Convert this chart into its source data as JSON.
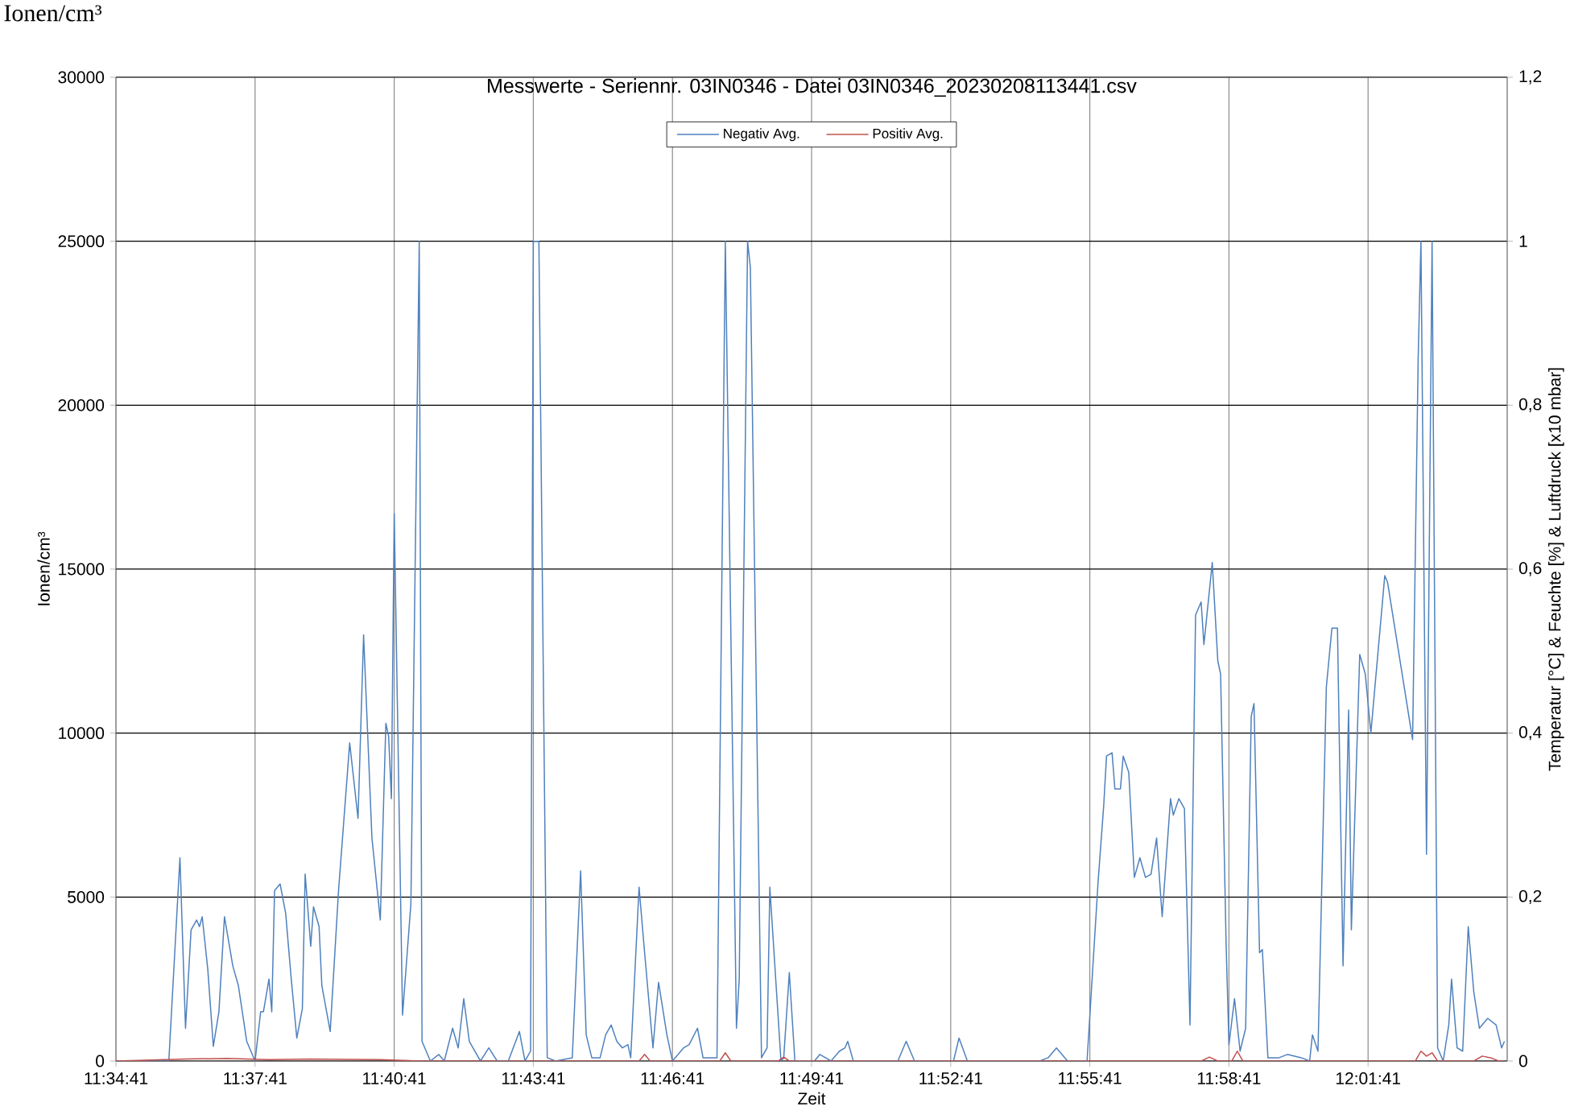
{
  "chart_data": {
    "type": "line",
    "title": "Messwerte - Seriennr. 03IN0346 - Datei 03IN0346_20230208113441.csv",
    "annotations": [
      "Ionen/cm³"
    ],
    "xlabel": "Zeit",
    "ylabel": "Ionen/cm³",
    "y2label": "Temperatur [°C] & Feuchte [%] & Luftdruck [x10 mbar]",
    "xlim": [
      11.57806,
      12.07806
    ],
    "xticks": [
      {
        "value": 11.57806,
        "label": "11:34:41"
      },
      {
        "value": 11.62806,
        "label": "11:37:41"
      },
      {
        "value": 11.67806,
        "label": "11:40:41"
      },
      {
        "value": 11.72806,
        "label": "11:43:41"
      },
      {
        "value": 11.77806,
        "label": "11:46:41"
      },
      {
        "value": 11.82806,
        "label": "11:49:41"
      },
      {
        "value": 11.87806,
        "label": "11:52:41"
      },
      {
        "value": 11.92806,
        "label": "11:55:41"
      },
      {
        "value": 11.97806,
        "label": "11:58:41"
      },
      {
        "value": 12.02806,
        "label": "12:01:41"
      }
    ],
    "ylim": [
      0,
      30000
    ],
    "yticks": [
      0,
      5000,
      10000,
      15000,
      20000,
      25000,
      30000
    ],
    "y2lim": [
      0,
      1.2
    ],
    "y2ticks": [
      0,
      {
        "value": 0.2,
        "label": "0,2"
      },
      {
        "value": 0.4,
        "label": "0,4"
      },
      {
        "value": 0.6,
        "label": "0,6"
      },
      {
        "value": 0.8,
        "label": "0,8"
      },
      1,
      {
        "value": 1.2,
        "label": "1,2"
      }
    ],
    "grid": true,
    "legend": "top",
    "series": [
      {
        "name": "Negativ Avg.",
        "color": "#4f81bd",
        "x": [
          11.57806,
          11.59706,
          11.60106,
          11.60306,
          11.60506,
          11.60706,
          11.60806,
          11.60906,
          11.61106,
          11.61306,
          11.61506,
          11.61706,
          11.62006,
          11.62206,
          11.62506,
          11.62806,
          11.63006,
          11.63106,
          11.63306,
          11.63406,
          11.63506,
          11.63706,
          11.63906,
          11.64106,
          11.64306,
          11.64506,
          11.64606,
          11.64806,
          11.64906,
          11.65106,
          11.65206,
          11.65506,
          11.65806,
          11.66206,
          11.66506,
          11.66706,
          11.67006,
          11.67306,
          11.67506,
          11.67606,
          11.67706,
          11.67806,
          11.68106,
          11.68406,
          11.68706,
          11.68806,
          11.69106,
          11.69406,
          11.69606,
          11.69906,
          11.70106,
          11.70306,
          11.70506,
          11.70906,
          11.71206,
          11.71506,
          11.71906,
          11.72306,
          11.72506,
          11.72706,
          11.72806,
          11.73006,
          11.73306,
          11.73606,
          11.74206,
          11.74506,
          11.74706,
          11.74906,
          11.75206,
          11.75406,
          11.75606,
          11.75806,
          11.76006,
          11.76206,
          11.76306,
          11.76606,
          11.76806,
          11.77106,
          11.77306,
          11.77606,
          11.77806,
          11.78206,
          11.78406,
          11.78706,
          11.78906,
          11.79406,
          11.79706,
          11.80106,
          11.80206,
          11.80506,
          11.80606,
          11.81006,
          11.81206,
          11.81306,
          11.81706,
          11.81806,
          11.82006,
          11.82206,
          11.82906,
          11.83106,
          11.83506,
          11.83806,
          11.84006,
          11.84106,
          11.84306,
          11.85906,
          11.86206,
          11.86506,
          11.87906,
          11.88106,
          11.88406,
          11.91006,
          11.91306,
          11.91606,
          11.92006,
          11.92706,
          11.93106,
          11.93306,
          11.93406,
          11.93606,
          11.93706,
          11.93906,
          11.94006,
          11.94206,
          11.94406,
          11.94606,
          11.94806,
          11.95006,
          11.95206,
          11.95406,
          11.95706,
          11.95806,
          11.96006,
          11.96206,
          11.96406,
          11.96606,
          11.96806,
          11.96906,
          11.97206,
          11.97406,
          11.97506,
          11.97706,
          11.97806,
          11.98006,
          11.98206,
          11.98406,
          11.98606,
          11.98706,
          11.98906,
          11.99006,
          11.99206,
          11.99606,
          11.99906,
          12.00406,
          12.00706,
          12.00806,
          12.01006,
          12.01306,
          12.01506,
          12.01706,
          12.01906,
          12.02106,
          12.02206,
          12.02506,
          12.02706,
          12.02906,
          12.03406,
          12.03506,
          12.04406,
          12.04606,
          12.04706,
          12.04906,
          12.05106,
          12.05306,
          12.05506,
          12.05706,
          12.05806,
          12.06006,
          12.06206,
          12.06406,
          12.06606,
          12.06806,
          12.07106,
          12.07406,
          12.07606,
          12.07706
        ],
        "values": [
          0,
          0,
          6200,
          1000,
          4000,
          4300,
          4100,
          4400,
          2800,
          450,
          1500,
          4400,
          2900,
          2300,
          600,
          0,
          1500,
          1500,
          2500,
          1500,
          5200,
          5400,
          4500,
          2500,
          700,
          1600,
          5700,
          3500,
          4700,
          4100,
          2300,
          900,
          5200,
          9700,
          7400,
          13000,
          6800,
          4300,
          10300,
          9900,
          8000,
          16700,
          1400,
          4800,
          25000,
          600,
          0,
          200,
          0,
          1000,
          400,
          1900,
          600,
          0,
          400,
          0,
          0,
          900,
          0,
          300,
          25000,
          25000,
          100,
          0,
          100,
          5800,
          800,
          100,
          100,
          800,
          1100,
          600,
          400,
          500,
          100,
          5300,
          3300,
          400,
          2400,
          800,
          0,
          400,
          500,
          1000,
          100,
          100,
          25000,
          1000,
          2500,
          25000,
          24200,
          100,
          400,
          5300,
          0,
          100,
          2700,
          0,
          0,
          200,
          0,
          300,
          400,
          600,
          0,
          0,
          600,
          0,
          0,
          700,
          0,
          0,
          100,
          400,
          0,
          0,
          5500,
          7800,
          9300,
          9400,
          8300,
          8300,
          9300,
          8800,
          5600,
          6200,
          5600,
          5700,
          6800,
          4400,
          8000,
          7500,
          8000,
          7700,
          1100,
          13600,
          14000,
          12700,
          15200,
          12200,
          11800,
          3500,
          500,
          1900,
          300,
          1000,
          10500,
          10900,
          3300,
          3400,
          100,
          100,
          200,
          100,
          0,
          800,
          300,
          11400,
          13200,
          13200,
          2900,
          10700,
          4000,
          12400,
          11800,
          10000,
          14800,
          14600,
          9800,
          21400,
          25000,
          6300,
          25000,
          400,
          0,
          1100,
          2500,
          400,
          300,
          4100,
          2100,
          1000,
          1300,
          1100,
          400,
          600
        ]
      },
      {
        "name": "Positiv Avg.",
        "color": "#c0504d",
        "x": [
          11.57806,
          11.60306,
          11.61806,
          11.63306,
          11.64806,
          11.67306,
          11.68806,
          11.76606,
          11.76806,
          11.77006,
          11.79506,
          11.79706,
          11.79906,
          11.81606,
          11.81806,
          11.82006,
          11.96806,
          11.97106,
          11.97406,
          11.97906,
          11.98106,
          11.98306,
          12.04506,
          12.04706,
          12.04906,
          12.05106,
          12.05306,
          12.06606,
          12.06906,
          12.07206,
          12.07506,
          12.07706
        ],
        "values": [
          0,
          60,
          80,
          40,
          60,
          40,
          0,
          0,
          200,
          0,
          0,
          250,
          0,
          0,
          120,
          0,
          0,
          120,
          0,
          0,
          300,
          0,
          0,
          300,
          150,
          250,
          0,
          0,
          150,
          100,
          0,
          0
        ]
      }
    ]
  }
}
